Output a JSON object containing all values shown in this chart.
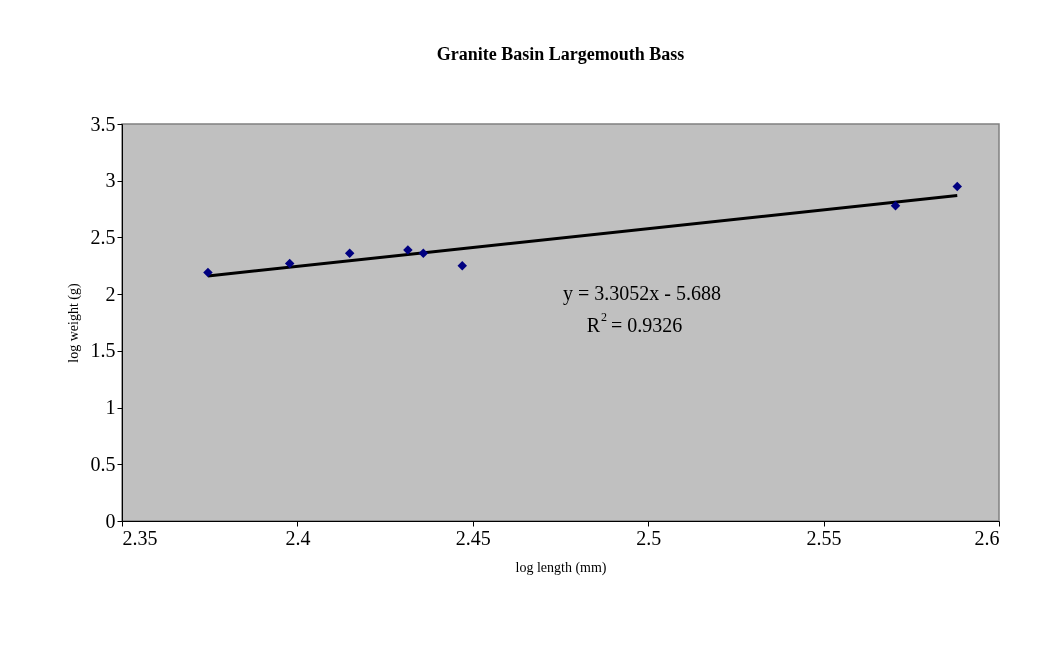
{
  "chart_data": {
    "type": "scatter",
    "title": "Granite Basin Largemouth Bass",
    "xlabel": "log length (mm)",
    "ylabel": "log weight (g)",
    "xlim": [
      2.35,
      2.6
    ],
    "xticks": [
      2.35,
      2.4,
      2.45,
      2.5,
      2.55,
      2.6
    ],
    "ylim": [
      0,
      3.5
    ],
    "yticks": [
      0,
      0.5,
      1,
      1.5,
      2,
      2.5,
      3,
      3.5
    ],
    "series": [
      {
        "type": "line",
        "color": "#000000",
        "line_style": "solid",
        "x": [
          2.3745,
          2.5881
        ],
        "values": [
          2.16,
          2.87
        ]
      },
      {
        "color": "#000080",
        "marker": "diamond",
        "x": [
          2.3745,
          2.3978,
          2.4149,
          2.4315,
          2.4359,
          2.447,
          2.5705,
          2.5881
        ],
        "values": [
          2.19,
          2.27,
          2.36,
          2.39,
          2.36,
          2.25,
          2.78,
          2.95
        ]
      }
    ],
    "annotations": [
      "y = 3.3052x - 5.688",
      "R$^{2}$ = 0.9326"
    ]
  }
}
